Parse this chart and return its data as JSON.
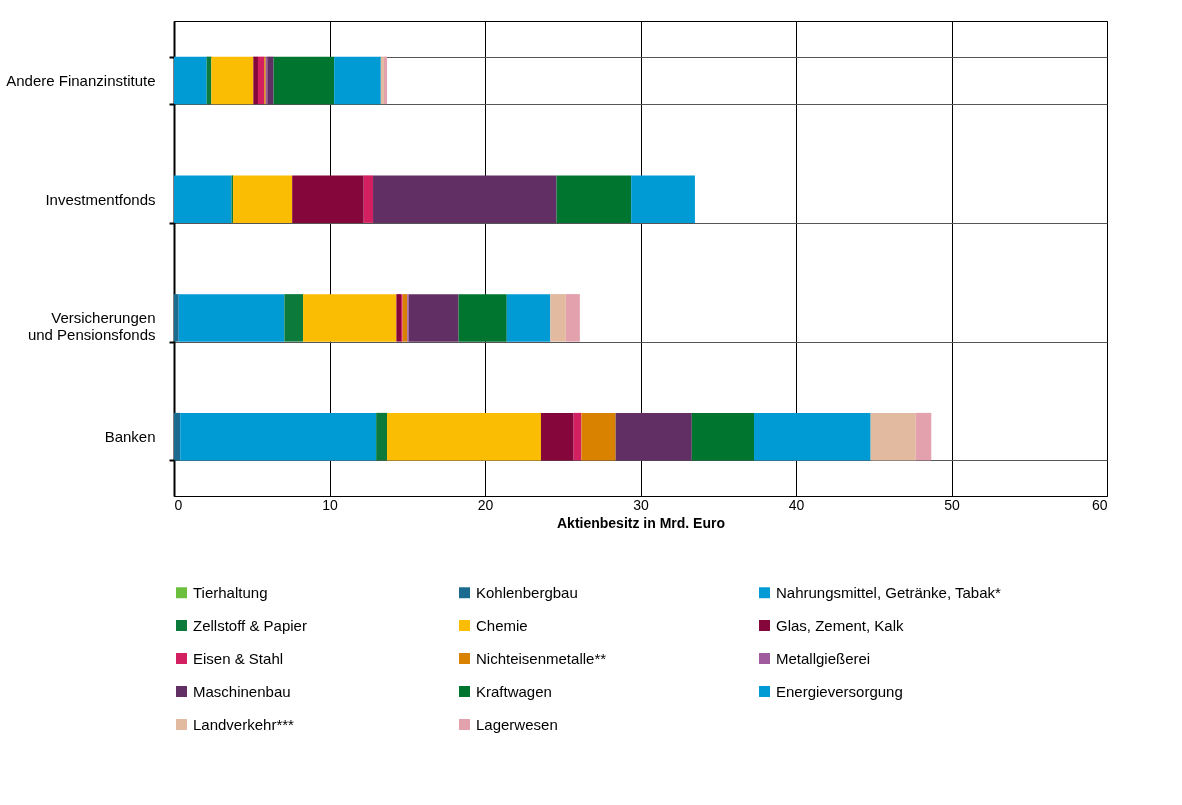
{
  "chart_data": {
    "type": "bar",
    "orientation": "horizontal",
    "stacked": true,
    "xlabel": "Aktienbesitz in Mrd. Euro",
    "categories": [
      "Andere Finanzinstitute",
      "Investmentfonds",
      "Versicherungen und Pensionsfonds",
      "Banken"
    ],
    "xlim": [
      0,
      60
    ],
    "xticks": [
      0,
      10,
      20,
      30,
      40,
      50,
      60
    ],
    "grid": true,
    "legend": "bottom",
    "series": [
      {
        "name": "Tierhaltung",
        "color": "#6cbf3c",
        "values": [
          0,
          0,
          0,
          0
        ]
      },
      {
        "name": "Kohlenbergbau",
        "color": "#1b6a8f",
        "values": [
          0,
          0,
          0.3,
          0.4
        ]
      },
      {
        "name": "Nahrungsmittel, Getränke, Tabak*",
        "color": "#009bd5",
        "values": [
          2.1,
          3.7,
          6.8,
          12.6
        ]
      },
      {
        "name": "Zellstoff & Papier",
        "color": "#0b7a3a",
        "values": [
          0.3,
          0.1,
          1.2,
          0.7
        ]
      },
      {
        "name": "Chemie",
        "color": "#fbbc04",
        "values": [
          2.7,
          3.8,
          6.0,
          9.9
        ]
      },
      {
        "name": "Glas, Zement, Kalk",
        "color": "#84063a",
        "values": [
          0.3,
          4.6,
          0.3,
          2.1
        ]
      },
      {
        "name": "Eisen & Stahl",
        "color": "#d22060",
        "values": [
          0.4,
          0.6,
          0.1,
          0.5
        ]
      },
      {
        "name": "Nichteisenmetalle**",
        "color": "#d98200",
        "values": [
          0.1,
          0,
          0.3,
          2.2
        ]
      },
      {
        "name": "Metallgießerei",
        "color": "#a05a9e",
        "values": [
          0.1,
          0,
          0.1,
          0
        ]
      },
      {
        "name": "Maschinenbau",
        "color": "#612f63",
        "values": [
          0.4,
          11.8,
          3.2,
          4.9
        ]
      },
      {
        "name": "Kraftwagen",
        "color": "#007530",
        "values": [
          3.9,
          4.8,
          3.1,
          4.0
        ]
      },
      {
        "name": "Energieversorgung",
        "color": "#009bd5",
        "values": [
          3.0,
          4.1,
          2.8,
          7.5
        ]
      },
      {
        "name": "Landverkehr***",
        "color": "#e2baa0",
        "values": [
          0.2,
          0,
          1.0,
          2.9
        ]
      },
      {
        "name": "Lagerwesen",
        "color": "#e2a1ad",
        "values": [
          0.2,
          0,
          0.9,
          1.0
        ]
      }
    ]
  }
}
